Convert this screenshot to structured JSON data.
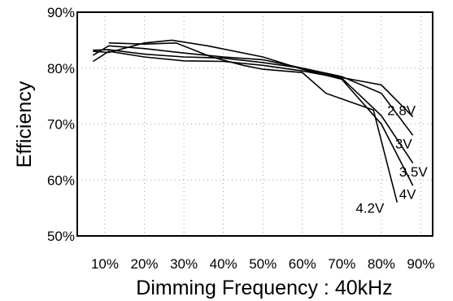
{
  "chart_data": {
    "type": "line",
    "title": "",
    "xlabel": "Dimming Frequency : 40kHz",
    "ylabel": "Efficiency",
    "xlim": [
      3,
      93
    ],
    "ylim": [
      50,
      90
    ],
    "x_ticks": [
      {
        "value": 10,
        "label": "10%"
      },
      {
        "value": 20,
        "label": "20%"
      },
      {
        "value": 30,
        "label": "30%"
      },
      {
        "value": 40,
        "label": "40%"
      },
      {
        "value": 50,
        "label": "50%"
      },
      {
        "value": 60,
        "label": "60%"
      },
      {
        "value": 70,
        "label": "70%"
      },
      {
        "value": 80,
        "label": "80%"
      },
      {
        "value": 90,
        "label": "90%"
      }
    ],
    "y_ticks": [
      {
        "value": 50,
        "label": "50%"
      },
      {
        "value": 60,
        "label": "60%"
      },
      {
        "value": 70,
        "label": "70%"
      },
      {
        "value": 80,
        "label": "80%"
      },
      {
        "value": 90,
        "label": "90%"
      }
    ],
    "grid": true,
    "series": [
      {
        "name": "2.8V",
        "x": [
          7,
          11,
          20,
          30,
          40,
          50,
          60,
          70,
          80,
          88
        ],
        "y": [
          82.3,
          84.0,
          83.5,
          82.7,
          82.0,
          81.5,
          80.0,
          78.3,
          77.0,
          71.3
        ],
        "label_pos": [
          81.5,
          72.5
        ]
      },
      {
        "name": "3V",
        "x": [
          7,
          11,
          20,
          30,
          40,
          50,
          60,
          70,
          80,
          88
        ],
        "y": [
          83.2,
          83.3,
          82.5,
          82.0,
          81.8,
          81.0,
          80.0,
          78.5,
          75.5,
          68.0
        ],
        "label_pos": [
          83.5,
          66.5
        ]
      },
      {
        "name": "3.5V",
        "x": [
          7,
          11,
          20,
          30,
          40,
          50,
          60,
          70,
          80,
          88
        ],
        "y": [
          81.2,
          83.0,
          82.0,
          81.3,
          81.2,
          80.5,
          79.5,
          78.2,
          71.5,
          63.0
        ],
        "label_pos": [
          84.5,
          61.5
        ]
      },
      {
        "name": "4V",
        "x": [
          7,
          11,
          20,
          27,
          36,
          50,
          60,
          70,
          80,
          88
        ],
        "y": [
          83.0,
          82.8,
          84.5,
          85.0,
          84.0,
          82.0,
          79.8,
          78.0,
          70.0,
          59.0
        ],
        "label_pos": [
          84.5,
          57.5
        ]
      },
      {
        "name": "4.2V",
        "x": [
          11,
          20,
          28,
          37,
          45,
          50,
          60,
          66,
          72,
          78,
          84
        ],
        "y": [
          84.5,
          84.3,
          84.5,
          82.0,
          80.5,
          79.8,
          79.2,
          75.5,
          74.0,
          72.5,
          56.0
        ],
        "label_pos": [
          73.5,
          55.0
        ]
      }
    ]
  }
}
